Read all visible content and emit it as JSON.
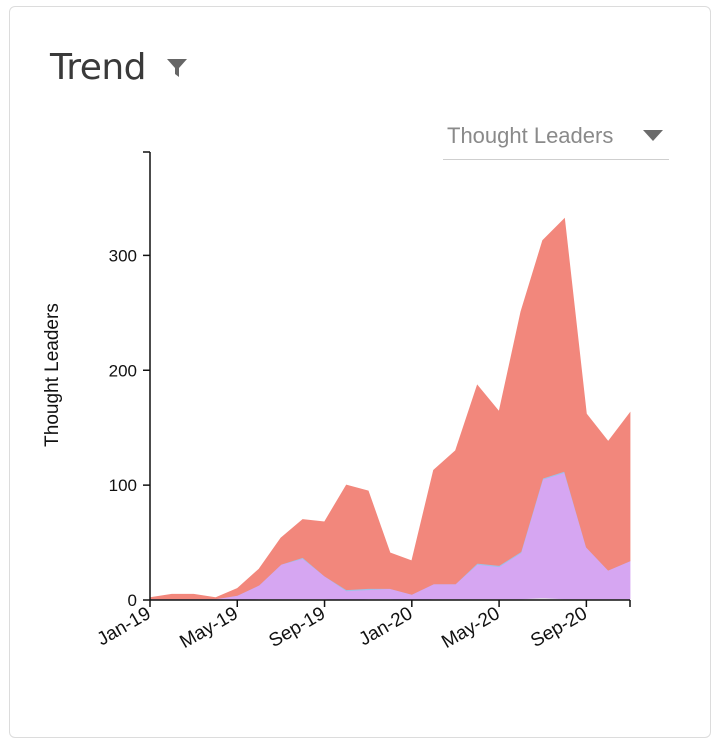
{
  "card": {
    "title": "Trend",
    "filter_icon": "filter-icon",
    "dropdown": {
      "selected": "Thought Leaders",
      "caret_icon": "caret-down-icon"
    }
  },
  "chart_data": {
    "type": "area",
    "stacked": true,
    "ylabel": "Thought Leaders",
    "ylim": [
      0,
      390
    ],
    "yticks": [
      0,
      100,
      200,
      300
    ],
    "x": [
      "Jan-19",
      "Feb-19",
      "Mar-19",
      "Apr-19",
      "May-19",
      "Jun-19",
      "Jul-19",
      "Aug-19",
      "Sep-19",
      "Oct-19",
      "Nov-19",
      "Dec-19",
      "Jan-20",
      "Feb-20",
      "Mar-20",
      "Apr-20",
      "May-20",
      "Jun-20",
      "Jul-20",
      "Aug-20",
      "Sep-20",
      "Oct-20",
      "Nov-20"
    ],
    "xtick_labels": [
      "Jan-19",
      "May-19",
      "Sep-19",
      "Jan-20",
      "May-20",
      "Sep-20"
    ],
    "xtick_positions": [
      "Jan-19",
      "May-19",
      "Sep-19",
      "Jan-20",
      "May-20",
      "Sep-20"
    ],
    "series": [
      {
        "color": "#e6e6e6",
        "values": [
          0,
          0,
          0,
          0,
          0,
          1,
          1,
          1,
          1,
          0,
          1,
          1,
          0,
          1,
          1,
          1,
          1,
          1,
          2,
          1,
          1,
          1,
          1
        ]
      },
      {
        "color": "#d6a6f2",
        "values": [
          1,
          1,
          1,
          1,
          4,
          12,
          30,
          35,
          20,
          8,
          8,
          9,
          5,
          13,
          13,
          30,
          28,
          40,
          103,
          110,
          45,
          25,
          33
        ]
      },
      {
        "color": "#9fc0e6",
        "values": [
          0,
          0,
          0,
          0,
          0,
          0,
          0,
          1,
          0,
          1,
          1,
          0,
          0,
          0,
          0,
          1,
          1,
          1,
          1,
          1,
          0,
          0,
          0
        ]
      },
      {
        "color": "#f2877c",
        "values": [
          1,
          4,
          4,
          1,
          6,
          14,
          23,
          33,
          47,
          91,
          85,
          31,
          29,
          99,
          116,
          155,
          134,
          209,
          207,
          220,
          116,
          112,
          129
        ]
      }
    ]
  }
}
